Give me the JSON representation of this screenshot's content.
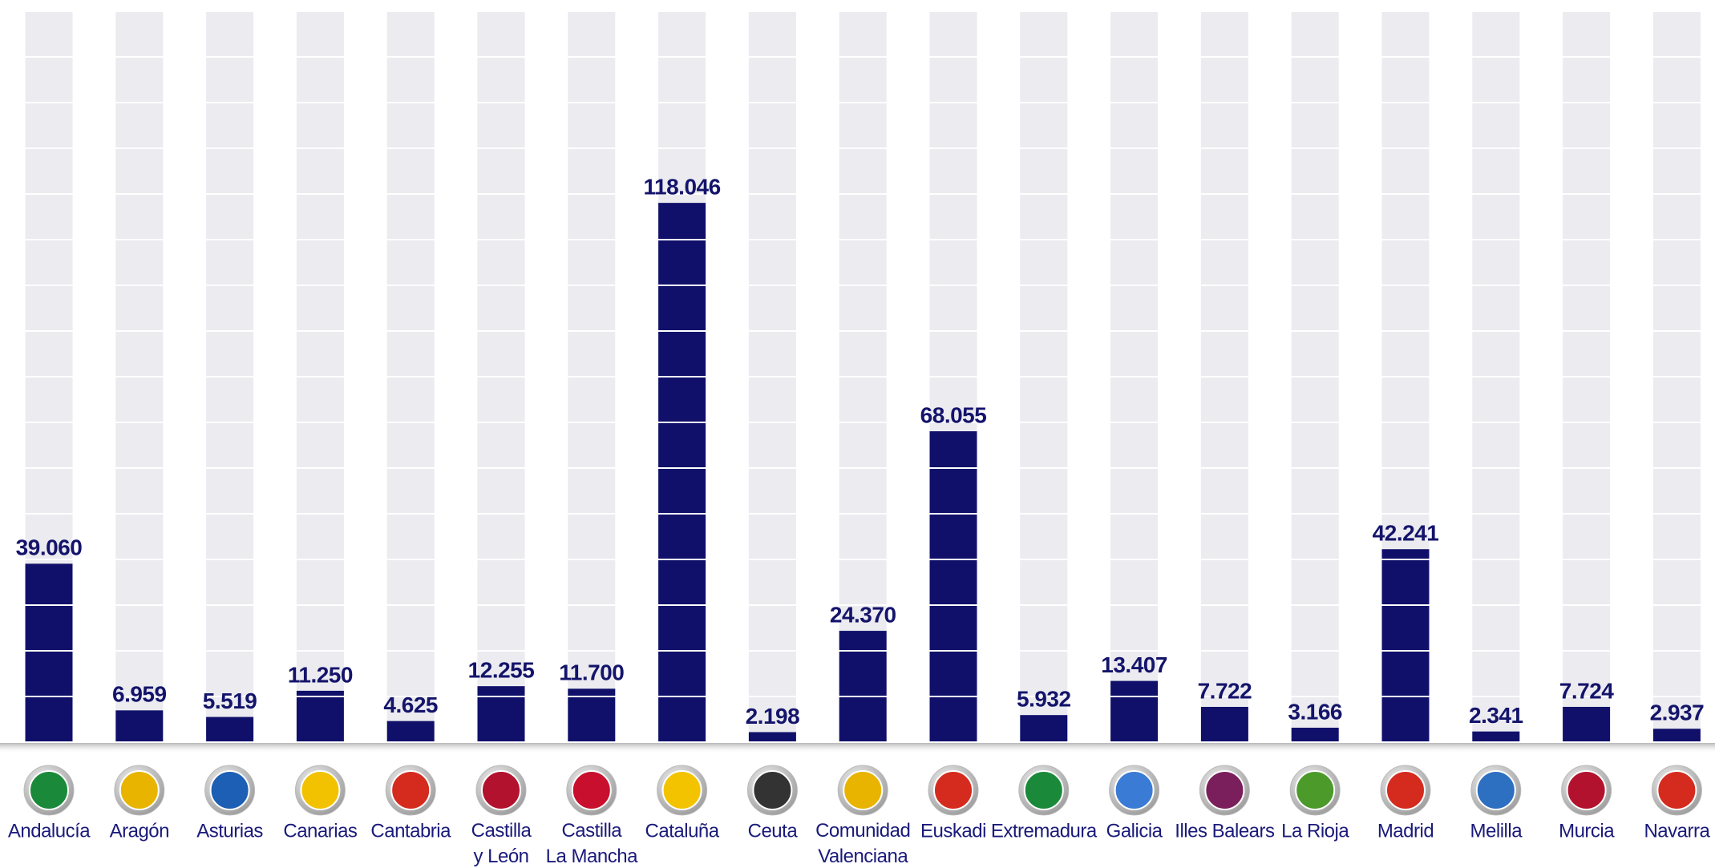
{
  "chart_data": {
    "type": "bar",
    "categories": [
      "Andalucía",
      "Aragón",
      "Asturias",
      "Canarias",
      "Cantabria",
      "Castilla y León",
      "Castilla La Mancha",
      "Cataluña",
      "Ceuta",
      "Comunidad Valenciana",
      "Euskadi",
      "Extremadura",
      "Galicia",
      "Illes Balears",
      "La Rioja",
      "Madrid",
      "Melilla",
      "Murcia",
      "Navarra"
    ],
    "values": [
      39060,
      6959,
      5519,
      11250,
      4625,
      12255,
      11700,
      118046,
      2198,
      24370,
      68055,
      5932,
      13407,
      7722,
      3166,
      42241,
      2341,
      7724,
      2937
    ],
    "value_labels": [
      "39.060",
      "6.959",
      "5.519",
      "11.250",
      "4.625",
      "12.255",
      "11.700",
      "118.046",
      "2.198",
      "24.370",
      "68.055",
      "5.932",
      "13.407",
      "7.722",
      "3.166",
      "42.241",
      "2.341",
      "7.724",
      "2.937"
    ],
    "color": "#10106b",
    "ylim": [
      0,
      160000
    ],
    "yticks": [
      0,
      10000,
      20000,
      30000,
      40000,
      50000,
      60000,
      70000,
      80000,
      90000,
      100000,
      110000,
      120000,
      130000,
      140000,
      150000,
      160000
    ],
    "grid": true
  }
}
